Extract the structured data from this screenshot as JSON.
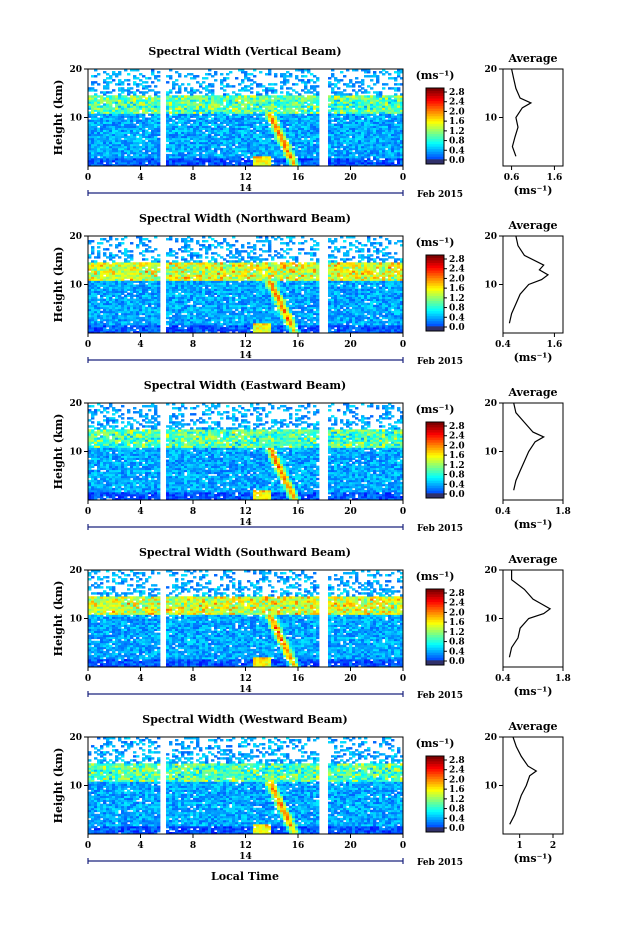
{
  "chart_data": [
    {
      "type": "heatmap",
      "title": "Spectral Width (Vertical Beam)",
      "ylabel": "Height (km)",
      "ylim": [
        0,
        20
      ],
      "yticks": [
        "10",
        "20"
      ],
      "x_ticks": [
        "0",
        "4",
        "8",
        "12",
        "16",
        "20",
        "0"
      ],
      "x_range": [
        0,
        24
      ],
      "date_label": "14",
      "month_label": "Feb 2015",
      "colorbar_unit": "(ms⁻¹)",
      "colorbar_ticks": [
        "0.0",
        "0.4",
        "0.8",
        "1.2",
        "1.6",
        "2.0",
        "2.4",
        "2.8"
      ],
      "data_gaps_hours": [
        [
          5.6,
          5.9
        ],
        [
          17.7,
          18.4
        ]
      ],
      "avg_title": "Average",
      "avg_xticks": [
        "0.6",
        "1.6"
      ],
      "avg_xlabel": "(ms⁻¹)",
      "avg_xlim": [
        0.4,
        1.8
      ],
      "avg_profile": [
        [
          2,
          0.7
        ],
        [
          4,
          0.62
        ],
        [
          6,
          0.68
        ],
        [
          8,
          0.75
        ],
        [
          10,
          0.7
        ],
        [
          12,
          0.85
        ],
        [
          13,
          1.05
        ],
        [
          14,
          0.8
        ],
        [
          16,
          0.7
        ],
        [
          18,
          0.65
        ],
        [
          20,
          0.6
        ]
      ]
    },
    {
      "type": "heatmap",
      "title": "Spectral Width (Northward Beam)",
      "ylabel": "Height (km)",
      "ylim": [
        0,
        20
      ],
      "yticks": [
        "10",
        "20"
      ],
      "x_ticks": [
        "0",
        "4",
        "8",
        "12",
        "16",
        "20",
        "0"
      ],
      "x_range": [
        0,
        24
      ],
      "date_label": "14",
      "month_label": "Feb 2015",
      "colorbar_unit": "(ms⁻¹)",
      "colorbar_ticks": [
        "0.0",
        "0.4",
        "0.8",
        "1.2",
        "1.6",
        "2.0",
        "2.4",
        "2.8"
      ],
      "data_gaps_hours": [
        [
          5.6,
          5.9
        ],
        [
          17.7,
          18.4
        ]
      ],
      "avg_title": "Average",
      "avg_xticks": [
        "0.4",
        "1.6"
      ],
      "avg_xlabel": "(ms⁻¹)",
      "avg_xlim": [
        0.4,
        1.8
      ],
      "avg_profile": [
        [
          2,
          0.55
        ],
        [
          4,
          0.6
        ],
        [
          6,
          0.7
        ],
        [
          8,
          0.8
        ],
        [
          10,
          1.0
        ],
        [
          11,
          1.3
        ],
        [
          12,
          1.45
        ],
        [
          13,
          1.25
        ],
        [
          14,
          1.35
        ],
        [
          16,
          0.9
        ],
        [
          18,
          0.75
        ],
        [
          20,
          0.7
        ]
      ]
    },
    {
      "type": "heatmap",
      "title": "Spectral Width (Eastward Beam)",
      "ylabel": "Height (km)",
      "ylim": [
        0,
        20
      ],
      "yticks": [
        "10",
        "20"
      ],
      "x_ticks": [
        "0",
        "4",
        "8",
        "12",
        "16",
        "20",
        "0"
      ],
      "x_range": [
        0,
        24
      ],
      "date_label": "14",
      "month_label": "Feb 2015",
      "colorbar_unit": "(ms⁻¹)",
      "colorbar_ticks": [
        "0.0",
        "0.4",
        "0.8",
        "1.2",
        "1.6",
        "2.0",
        "2.4",
        "2.8"
      ],
      "data_gaps_hours": [
        [
          5.6,
          5.9
        ],
        [
          17.7,
          18.4
        ]
      ],
      "avg_title": "Average",
      "avg_xticks": [
        "0.4",
        "1.8"
      ],
      "avg_xlabel": "(ms⁻¹)",
      "avg_xlim": [
        0.4,
        1.8
      ],
      "avg_profile": [
        [
          2,
          0.65
        ],
        [
          4,
          0.7
        ],
        [
          6,
          0.8
        ],
        [
          8,
          0.9
        ],
        [
          10,
          1.0
        ],
        [
          12,
          1.15
        ],
        [
          13,
          1.35
        ],
        [
          14,
          1.1
        ],
        [
          16,
          0.9
        ],
        [
          18,
          0.7
        ],
        [
          20,
          0.65
        ]
      ]
    },
    {
      "type": "heatmap",
      "title": "Spectral Width (Southward Beam)",
      "ylabel": "Height (km)",
      "ylim": [
        0,
        20
      ],
      "yticks": [
        "10",
        "20"
      ],
      "x_ticks": [
        "0",
        "4",
        "8",
        "12",
        "16",
        "20",
        "0"
      ],
      "x_range": [
        0,
        24
      ],
      "date_label": "14",
      "month_label": "Feb 2015",
      "colorbar_unit": "(ms⁻¹)",
      "colorbar_ticks": [
        "0.0",
        "0.4",
        "0.8",
        "1.2",
        "1.6",
        "2.0",
        "2.4",
        "2.8"
      ],
      "data_gaps_hours": [
        [
          5.6,
          5.9
        ],
        [
          17.7,
          18.4
        ]
      ],
      "avg_title": "Average",
      "avg_xticks": [
        "0.4",
        "1.8"
      ],
      "avg_xlabel": "(ms⁻¹)",
      "avg_xlim": [
        0.4,
        1.8
      ],
      "avg_profile": [
        [
          2,
          0.55
        ],
        [
          4,
          0.6
        ],
        [
          6,
          0.75
        ],
        [
          8,
          0.8
        ],
        [
          10,
          1.0
        ],
        [
          11,
          1.35
        ],
        [
          12,
          1.5
        ],
        [
          13,
          1.3
        ],
        [
          14,
          1.1
        ],
        [
          16,
          0.9
        ],
        [
          18,
          0.6
        ],
        [
          20,
          0.6
        ]
      ]
    },
    {
      "type": "heatmap",
      "title": "Spectral Width (Westward Beam)",
      "ylabel": "Height (km)",
      "ylim": [
        0,
        20
      ],
      "yticks": [
        "10",
        "20"
      ],
      "x_ticks": [
        "0",
        "4",
        "8",
        "12",
        "16",
        "20",
        "0"
      ],
      "x_range": [
        0,
        24
      ],
      "date_label": "14",
      "month_label": "Feb 2015",
      "xlabel": "Local Time",
      "colorbar_unit": "(ms⁻¹)",
      "colorbar_ticks": [
        "0.0",
        "0.4",
        "0.8",
        "1.2",
        "1.6",
        "2.0",
        "2.4",
        "2.8"
      ],
      "data_gaps_hours": [
        [
          5.6,
          5.9
        ],
        [
          17.7,
          18.4
        ]
      ],
      "avg_title": "Average",
      "avg_xticks": [
        "1",
        "2"
      ],
      "avg_xlabel": "(ms⁻¹)",
      "avg_xlim": [
        0.5,
        2.3
      ],
      "avg_profile": [
        [
          2,
          0.7
        ],
        [
          4,
          0.85
        ],
        [
          6,
          0.95
        ],
        [
          8,
          1.05
        ],
        [
          10,
          1.2
        ],
        [
          12,
          1.3
        ],
        [
          13,
          1.5
        ],
        [
          14,
          1.25
        ],
        [
          16,
          1.05
        ],
        [
          18,
          0.9
        ],
        [
          20,
          0.8
        ]
      ]
    }
  ]
}
